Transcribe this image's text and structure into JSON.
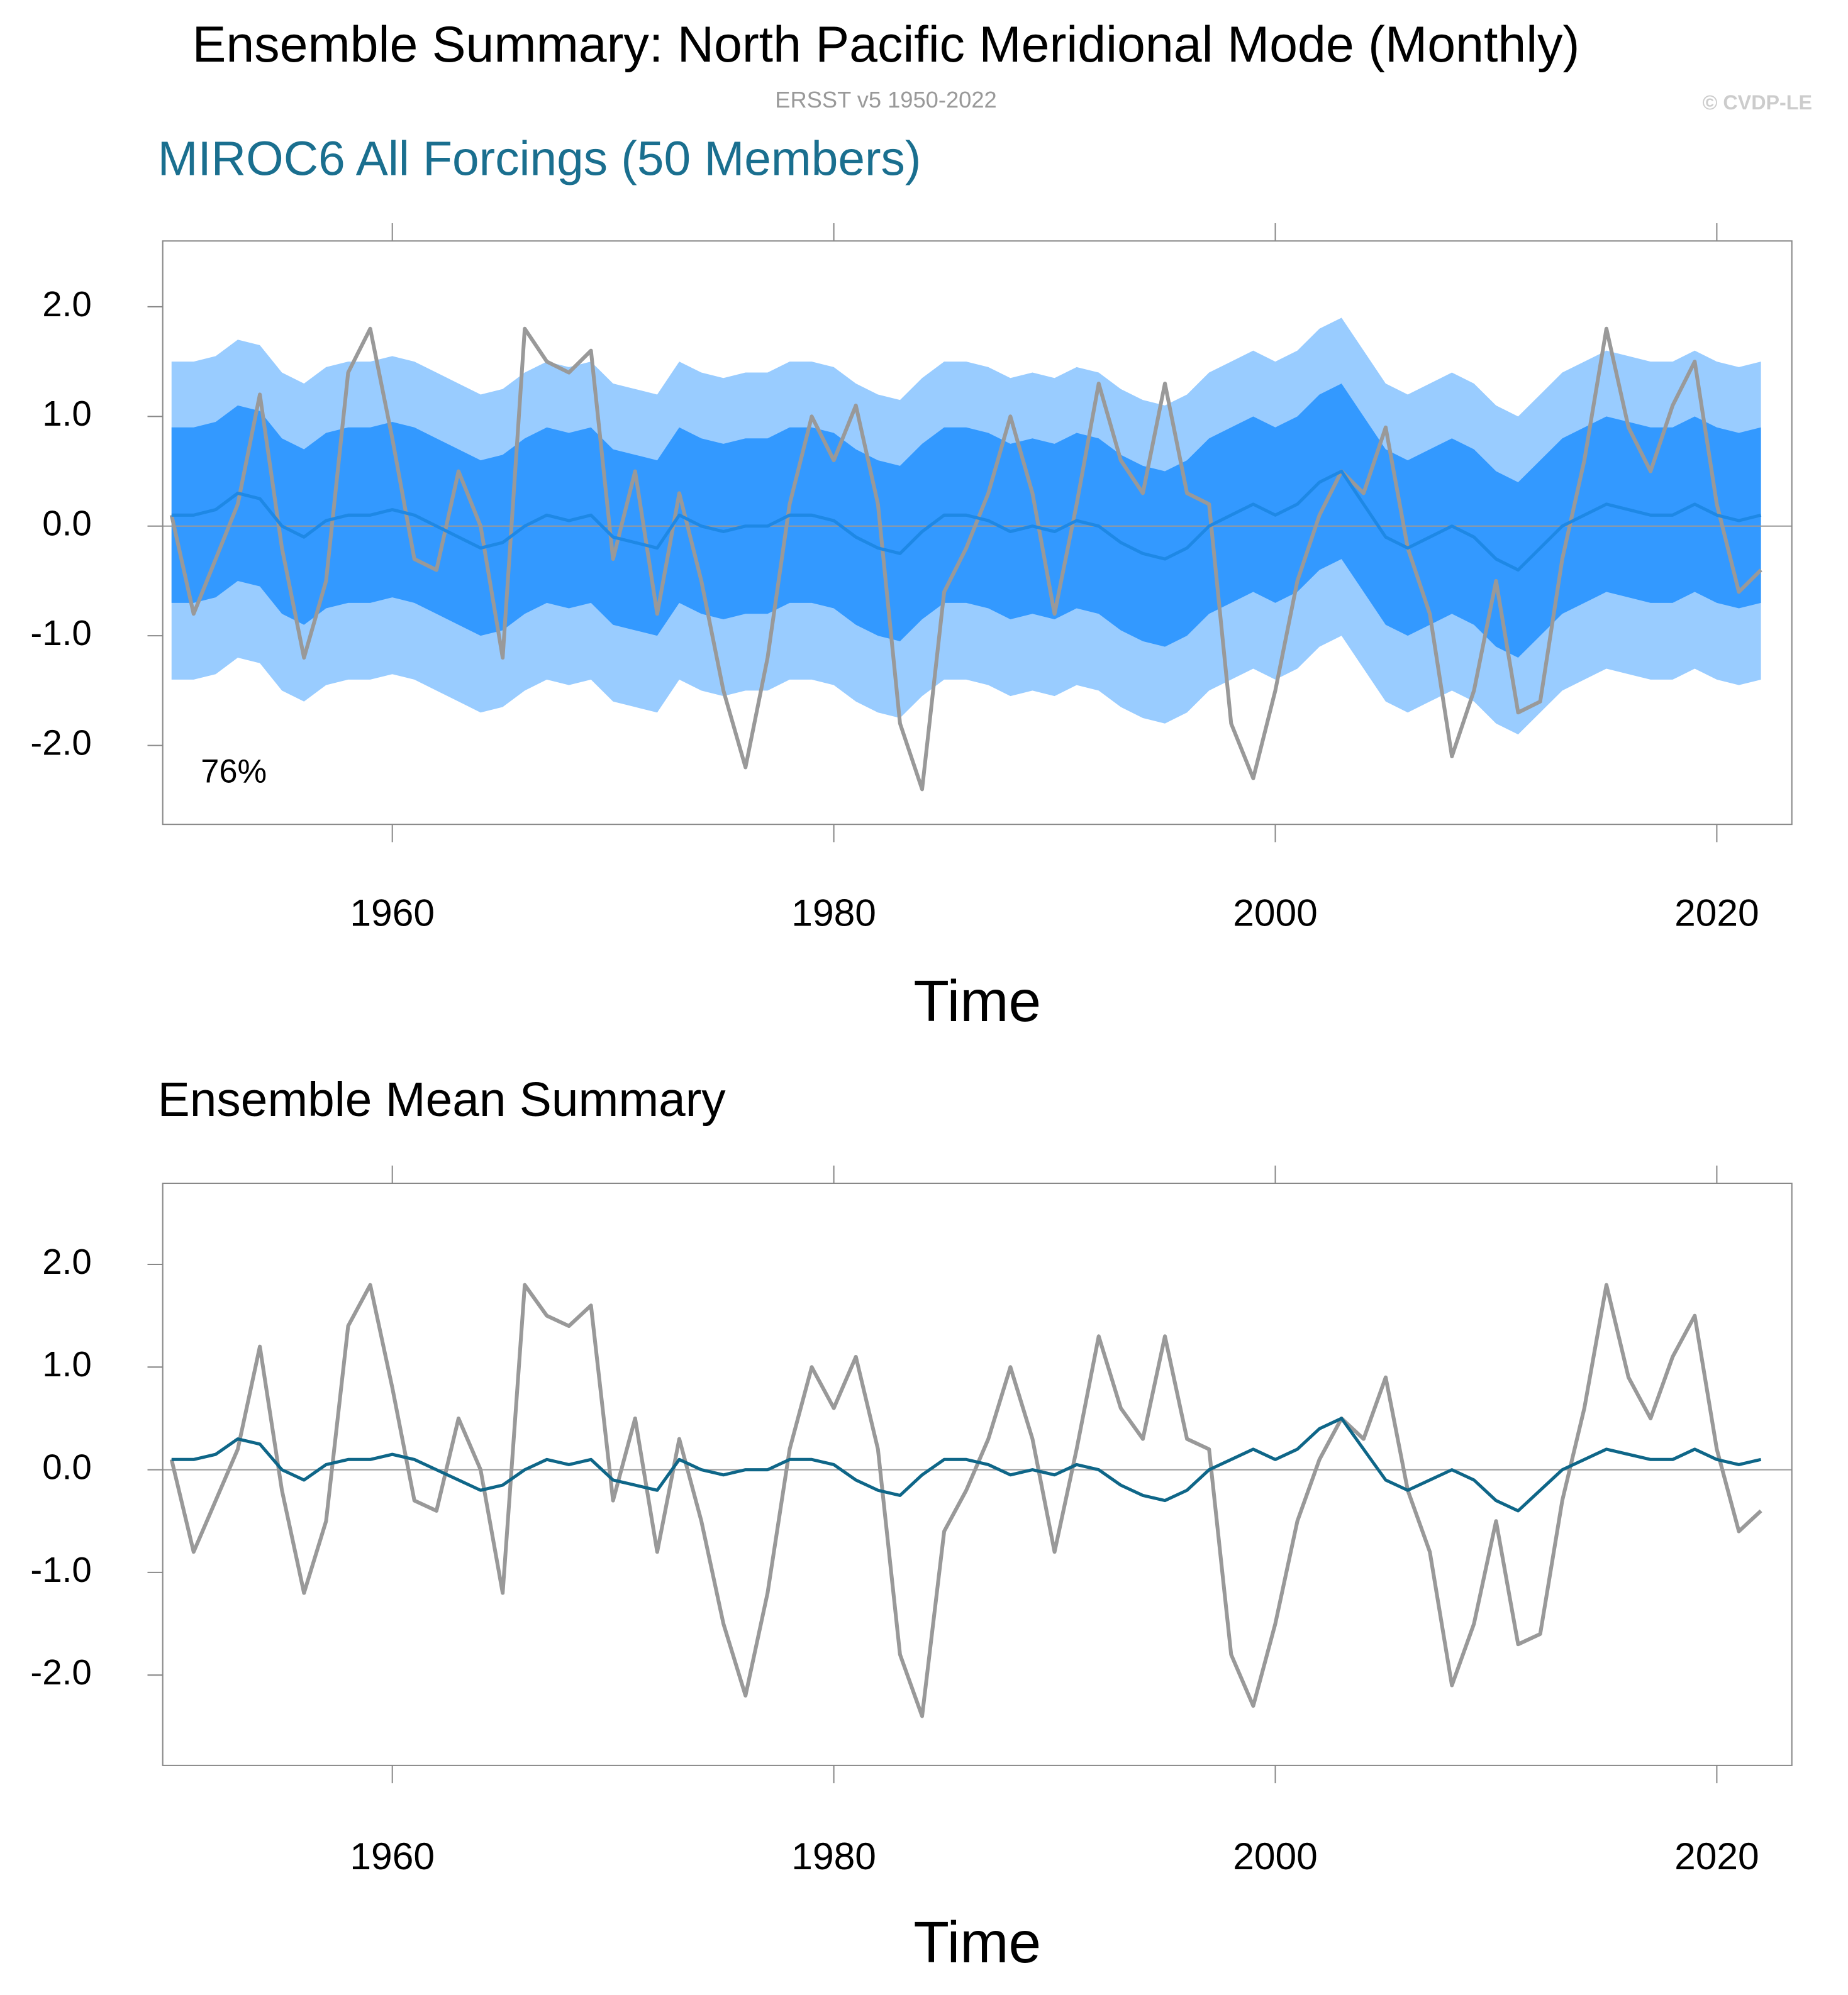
{
  "header": {
    "title": "Ensemble Summary: North Pacific Meridional Mode (Monthly)",
    "subtitle": "ERSST v5 1950-2022",
    "credit": "© CVDP-LE"
  },
  "chart_data": [
    {
      "type": "line",
      "title": "MIROC6 All Forcings (50 Members)",
      "x_label": "Time",
      "annotation": "76%",
      "x": [
        1950,
        1951,
        1952,
        1953,
        1954,
        1955,
        1956,
        1957,
        1958,
        1959,
        1960,
        1961,
        1962,
        1963,
        1964,
        1965,
        1966,
        1967,
        1968,
        1969,
        1970,
        1971,
        1972,
        1973,
        1974,
        1975,
        1976,
        1977,
        1978,
        1979,
        1980,
        1981,
        1982,
        1983,
        1984,
        1985,
        1986,
        1987,
        1988,
        1989,
        1990,
        1991,
        1992,
        1993,
        1994,
        1995,
        1996,
        1997,
        1998,
        1999,
        2000,
        2001,
        2002,
        2003,
        2004,
        2005,
        2006,
        2007,
        2008,
        2009,
        2010,
        2011,
        2012,
        2013,
        2014,
        2015,
        2016,
        2017,
        2018,
        2019,
        2020,
        2021,
        2022
      ],
      "xlim": [
        1949.6,
        2023.4
      ],
      "xticks": [
        1960,
        1980,
        2000,
        2020
      ],
      "ylim": [
        -2.72,
        2.6
      ],
      "yticks": [
        {
          "value": -2,
          "label": "-2.0"
        },
        {
          "value": -1,
          "label": "-1.0"
        },
        {
          "value": 0,
          "label": "0.0"
        },
        {
          "value": 1,
          "label": "1.0"
        },
        {
          "value": 2,
          "label": "2.0"
        }
      ],
      "zero_line": true,
      "bands": [
        {
          "color": "#99ccff",
          "low": [
            -1.4,
            -1.4,
            -1.35,
            -1.2,
            -1.25,
            -1.5,
            -1.6,
            -1.45,
            -1.4,
            -1.4,
            -1.35,
            -1.4,
            -1.5,
            -1.6,
            -1.7,
            -1.65,
            -1.5,
            -1.4,
            -1.45,
            -1.4,
            -1.6,
            -1.65,
            -1.7,
            -1.4,
            -1.5,
            -1.55,
            -1.5,
            -1.5,
            -1.4,
            -1.4,
            -1.45,
            -1.6,
            -1.7,
            -1.75,
            -1.55,
            -1.4,
            -1.4,
            -1.45,
            -1.55,
            -1.5,
            -1.55,
            -1.45,
            -1.5,
            -1.65,
            -1.75,
            -1.8,
            -1.7,
            -1.5,
            -1.4,
            -1.3,
            -1.4,
            -1.3,
            -1.1,
            -1.0,
            -1.3,
            -1.6,
            -1.7,
            -1.6,
            -1.5,
            -1.6,
            -1.8,
            -1.9,
            -1.7,
            -1.5,
            -1.4,
            -1.3,
            -1.35,
            -1.4,
            -1.4,
            -1.3,
            -1.4,
            -1.45,
            -1.4
          ],
          "high": [
            1.5,
            1.5,
            1.55,
            1.7,
            1.65,
            1.4,
            1.3,
            1.45,
            1.5,
            1.5,
            1.55,
            1.5,
            1.4,
            1.3,
            1.2,
            1.25,
            1.4,
            1.5,
            1.45,
            1.5,
            1.3,
            1.25,
            1.2,
            1.5,
            1.4,
            1.35,
            1.4,
            1.4,
            1.5,
            1.5,
            1.45,
            1.3,
            1.2,
            1.15,
            1.35,
            1.5,
            1.5,
            1.45,
            1.35,
            1.4,
            1.35,
            1.45,
            1.4,
            1.25,
            1.15,
            1.1,
            1.2,
            1.4,
            1.5,
            1.6,
            1.5,
            1.6,
            1.8,
            1.9,
            1.6,
            1.3,
            1.2,
            1.3,
            1.4,
            1.3,
            1.1,
            1.0,
            1.2,
            1.4,
            1.5,
            1.6,
            1.55,
            1.5,
            1.5,
            1.6,
            1.5,
            1.45,
            1.5
          ]
        },
        {
          "color": "#3399ff",
          "low": [
            -0.7,
            -0.7,
            -0.65,
            -0.5,
            -0.55,
            -0.8,
            -0.9,
            -0.75,
            -0.7,
            -0.7,
            -0.65,
            -0.7,
            -0.8,
            -0.9,
            -1.0,
            -0.95,
            -0.8,
            -0.7,
            -0.75,
            -0.7,
            -0.9,
            -0.95,
            -1.0,
            -0.7,
            -0.8,
            -0.85,
            -0.8,
            -0.8,
            -0.7,
            -0.7,
            -0.75,
            -0.9,
            -1.0,
            -1.05,
            -0.85,
            -0.7,
            -0.7,
            -0.75,
            -0.85,
            -0.8,
            -0.85,
            -0.75,
            -0.8,
            -0.95,
            -1.05,
            -1.1,
            -1.0,
            -0.8,
            -0.7,
            -0.6,
            -0.7,
            -0.6,
            -0.4,
            -0.3,
            -0.6,
            -0.9,
            -1.0,
            -0.9,
            -0.8,
            -0.9,
            -1.1,
            -1.2,
            -1.0,
            -0.8,
            -0.7,
            -0.6,
            -0.65,
            -0.7,
            -0.7,
            -0.6,
            -0.7,
            -0.75,
            -0.7
          ],
          "high": [
            0.9,
            0.9,
            0.95,
            1.1,
            1.05,
            0.8,
            0.7,
            0.85,
            0.9,
            0.9,
            0.95,
            0.9,
            0.8,
            0.7,
            0.6,
            0.65,
            0.8,
            0.9,
            0.85,
            0.9,
            0.7,
            0.65,
            0.6,
            0.9,
            0.8,
            0.75,
            0.8,
            0.8,
            0.9,
            0.9,
            0.85,
            0.7,
            0.6,
            0.55,
            0.75,
            0.9,
            0.9,
            0.85,
            0.75,
            0.8,
            0.75,
            0.85,
            0.8,
            0.65,
            0.55,
            0.5,
            0.6,
            0.8,
            0.9,
            1.0,
            0.9,
            1.0,
            1.2,
            1.3,
            1.0,
            0.7,
            0.6,
            0.7,
            0.8,
            0.7,
            0.5,
            0.4,
            0.6,
            0.8,
            0.9,
            1.0,
            0.95,
            0.9,
            0.9,
            1.0,
            0.9,
            0.85,
            0.9
          ]
        }
      ],
      "series": [
        {
          "color": "#999999",
          "values": [
            0.1,
            -0.8,
            -0.3,
            0.2,
            1.2,
            -0.2,
            -1.2,
            -0.5,
            1.4,
            1.8,
            0.8,
            -0.3,
            -0.4,
            0.5,
            0.0,
            -1.2,
            1.8,
            1.5,
            1.4,
            1.6,
            -0.3,
            0.5,
            -0.8,
            0.3,
            -0.5,
            -1.5,
            -2.2,
            -1.2,
            0.2,
            1.0,
            0.6,
            1.1,
            0.2,
            -1.8,
            -2.4,
            -0.6,
            -0.2,
            0.3,
            1.0,
            0.3,
            -0.8,
            0.2,
            1.3,
            0.6,
            0.3,
            1.3,
            0.3,
            0.2,
            -1.8,
            -2.3,
            -1.5,
            -0.5,
            0.1,
            0.5,
            0.3,
            0.9,
            -0.2,
            -0.8,
            -2.1,
            -1.5,
            -0.5,
            -1.7,
            -1.6,
            -0.3,
            0.6,
            1.8,
            0.9,
            0.5,
            1.1,
            1.5,
            0.2,
            -0.6,
            -0.4
          ]
        },
        {
          "color": "#1e88e5",
          "values": [
            0.1,
            0.1,
            0.15,
            0.3,
            0.25,
            0.0,
            -0.1,
            0.05,
            0.1,
            0.1,
            0.15,
            0.1,
            0.0,
            -0.1,
            -0.2,
            -0.15,
            0.0,
            0.1,
            0.05,
            0.1,
            -0.1,
            -0.15,
            -0.2,
            0.1,
            0.0,
            -0.05,
            0.0,
            0.0,
            0.1,
            0.1,
            0.05,
            -0.1,
            -0.2,
            -0.25,
            -0.05,
            0.1,
            0.1,
            0.05,
            -0.05,
            0.0,
            -0.05,
            0.05,
            0.0,
            -0.15,
            -0.25,
            -0.3,
            -0.2,
            0.0,
            0.1,
            0.2,
            0.1,
            0.2,
            0.4,
            0.5,
            0.2,
            -0.1,
            -0.2,
            -0.1,
            0.0,
            -0.1,
            -0.3,
            -0.4,
            -0.2,
            0.0,
            0.1,
            0.2,
            0.15,
            0.1,
            0.1,
            0.2,
            0.1,
            0.05,
            0.1
          ]
        }
      ]
    },
    {
      "type": "line",
      "title": "Ensemble Mean Summary",
      "x_label": "Time",
      "x": [
        1950,
        1951,
        1952,
        1953,
        1954,
        1955,
        1956,
        1957,
        1958,
        1959,
        1960,
        1961,
        1962,
        1963,
        1964,
        1965,
        1966,
        1967,
        1968,
        1969,
        1970,
        1971,
        1972,
        1973,
        1974,
        1975,
        1976,
        1977,
        1978,
        1979,
        1980,
        1981,
        1982,
        1983,
        1984,
        1985,
        1986,
        1987,
        1988,
        1989,
        1990,
        1991,
        1992,
        1993,
        1994,
        1995,
        1996,
        1997,
        1998,
        1999,
        2000,
        2001,
        2002,
        2003,
        2004,
        2005,
        2006,
        2007,
        2008,
        2009,
        2010,
        2011,
        2012,
        2013,
        2014,
        2015,
        2016,
        2017,
        2018,
        2019,
        2020,
        2021,
        2022
      ],
      "xlim": [
        1949.6,
        2023.4
      ],
      "xticks": [
        1960,
        1980,
        2000,
        2020
      ],
      "ylim": [
        -2.88,
        2.79
      ],
      "yticks": [
        {
          "value": -2,
          "label": "-2.0"
        },
        {
          "value": -1,
          "label": "-1.0"
        },
        {
          "value": 0,
          "label": "0.0"
        },
        {
          "value": 1,
          "label": "1.0"
        },
        {
          "value": 2,
          "label": "2.0"
        }
      ],
      "zero_line": true,
      "series": [
        {
          "color": "#999999",
          "values": [
            0.1,
            -0.8,
            -0.3,
            0.2,
            1.2,
            -0.2,
            -1.2,
            -0.5,
            1.4,
            1.8,
            0.8,
            -0.3,
            -0.4,
            0.5,
            0.0,
            -1.2,
            1.8,
            1.5,
            1.4,
            1.6,
            -0.3,
            0.5,
            -0.8,
            0.3,
            -0.5,
            -1.5,
            -2.2,
            -1.2,
            0.2,
            1.0,
            0.6,
            1.1,
            0.2,
            -1.8,
            -2.4,
            -0.6,
            -0.2,
            0.3,
            1.0,
            0.3,
            -0.8,
            0.2,
            1.3,
            0.6,
            0.3,
            1.3,
            0.3,
            0.2,
            -1.8,
            -2.3,
            -1.5,
            -0.5,
            0.1,
            0.5,
            0.3,
            0.9,
            -0.2,
            -0.8,
            -2.1,
            -1.5,
            -0.5,
            -1.7,
            -1.6,
            -0.3,
            0.6,
            1.8,
            0.9,
            0.5,
            1.1,
            1.5,
            0.2,
            -0.6,
            -0.4
          ]
        },
        {
          "color": "#0e6688",
          "values": [
            0.1,
            0.1,
            0.15,
            0.3,
            0.25,
            0.0,
            -0.1,
            0.05,
            0.1,
            0.1,
            0.15,
            0.1,
            0.0,
            -0.1,
            -0.2,
            -0.15,
            0.0,
            0.1,
            0.05,
            0.1,
            -0.1,
            -0.15,
            -0.2,
            0.1,
            0.0,
            -0.05,
            0.0,
            0.0,
            0.1,
            0.1,
            0.05,
            -0.1,
            -0.2,
            -0.25,
            -0.05,
            0.1,
            0.1,
            0.05,
            -0.05,
            0.0,
            -0.05,
            0.05,
            0.0,
            -0.15,
            -0.25,
            -0.3,
            -0.2,
            0.0,
            0.1,
            0.2,
            0.1,
            0.2,
            0.4,
            0.5,
            0.2,
            -0.1,
            -0.2,
            -0.1,
            0.0,
            -0.1,
            -0.3,
            -0.4,
            -0.2,
            0.0,
            0.1,
            0.2,
            0.15,
            0.1,
            0.1,
            0.2,
            0.1,
            0.05,
            0.1
          ]
        }
      ]
    }
  ]
}
